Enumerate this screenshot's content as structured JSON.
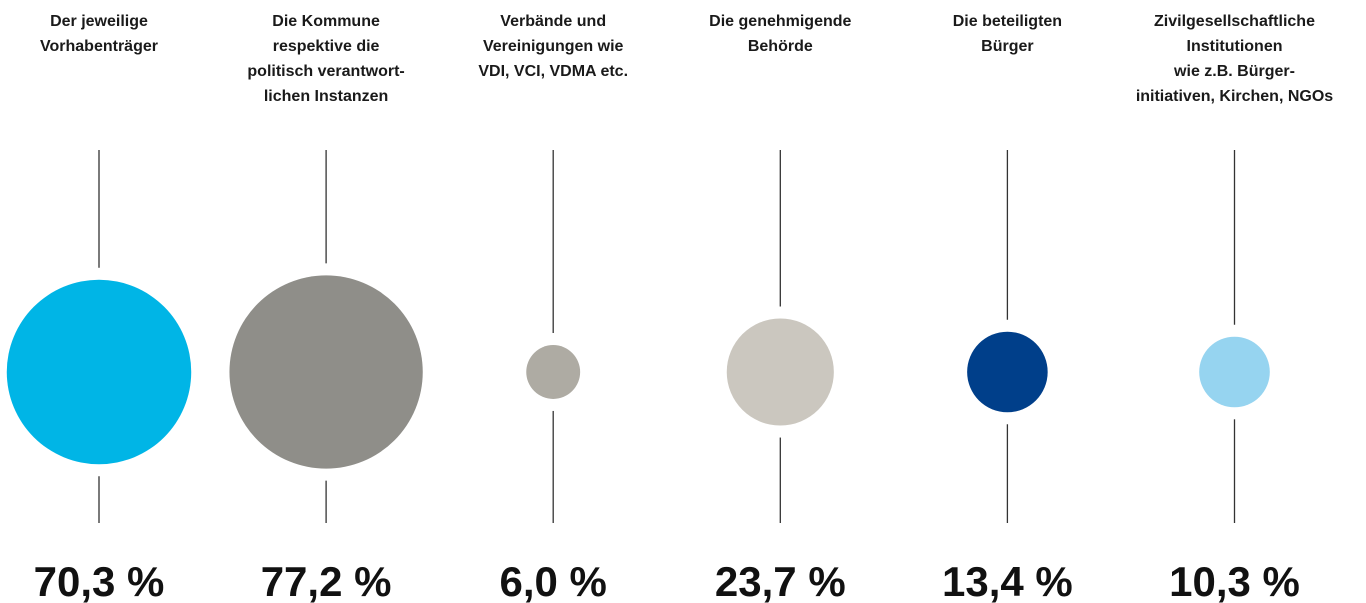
{
  "chart_data": {
    "type": "bubble",
    "categories": [
      [
        "Der jeweilige",
        "Vorhabenträger"
      ],
      [
        "Die Kommune",
        "respektive die",
        "politisch verantwort-",
        "lichen Instanzen"
      ],
      [
        "Verbände und",
        "Vereinigungen wie",
        "VDI, VCI, VDMA etc."
      ],
      [
        "Die genehmigende",
        "Behörde"
      ],
      [
        "Die beteiligten",
        "Bürger"
      ],
      [
        "Zivilgesellschaftliche",
        "Institutionen",
        "wie z.B. Bürger-",
        "initiativen, Kirchen, NGOs"
      ]
    ],
    "values": [
      70.3,
      77.2,
      6.0,
      23.7,
      13.4,
      10.3
    ],
    "value_labels": [
      "70,3 %",
      "77,2 %",
      "6,0 %",
      "23,7 %",
      "13,4 %",
      "10,3 %"
    ],
    "colors": [
      "#00b5e6",
      "#8f8e89",
      "#aeaba3",
      "#cbc7bf",
      "#003f8a",
      "#96d4f0"
    ]
  }
}
